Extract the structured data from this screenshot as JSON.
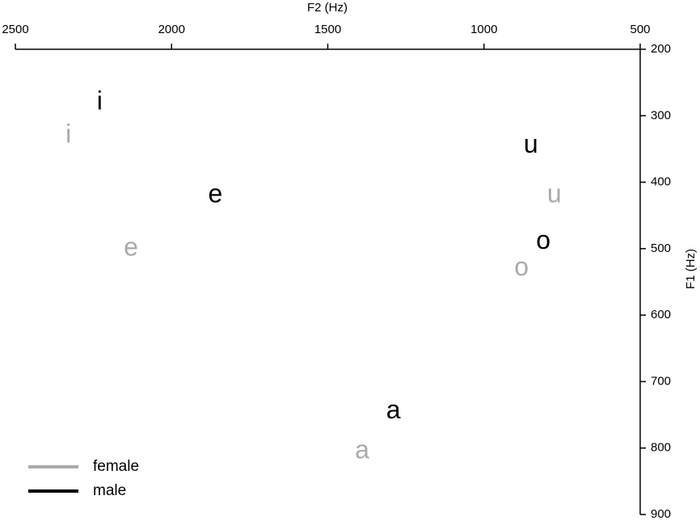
{
  "chart_data": {
    "type": "scatter",
    "x_label": "F2  (Hz)",
    "y_label": "F1 (Hz)",
    "xlim": [
      2500,
      500
    ],
    "xticks": [
      2500,
      2000,
      1500,
      1000,
      500
    ],
    "ylim": [
      900,
      200
    ],
    "yticks": [
      200,
      300,
      400,
      500,
      600,
      700,
      800,
      900
    ],
    "legend": "lower left",
    "series": [
      {
        "name": "female",
        "color": "#aaaaaa",
        "labels": [
          "i",
          "e",
          "u",
          "o",
          "a"
        ],
        "x": [
          2330,
          2130,
          775,
          880,
          1390
        ],
        "values": [
          330,
          500,
          420,
          530,
          805
        ]
      },
      {
        "name": "male",
        "color": "#000000",
        "labels": [
          "i",
          "e",
          "u",
          "o",
          "a"
        ],
        "x": [
          2230,
          1860,
          850,
          810,
          1290
        ],
        "values": [
          280,
          420,
          345,
          490,
          745
        ]
      }
    ]
  }
}
